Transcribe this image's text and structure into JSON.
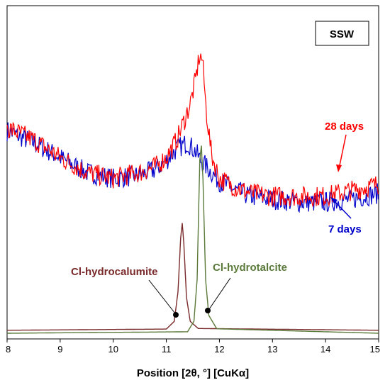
{
  "chart_data": {
    "type": "line",
    "title": "",
    "badge": "SSW",
    "xlabel": "Position [2θ, °] [CuKα]",
    "ylabel": "",
    "xlim": [
      8,
      15
    ],
    "ylim": [
      0,
      100
    ],
    "xticks": [
      8,
      9,
      10,
      11,
      12,
      13,
      14,
      15
    ],
    "xtick_labels": [
      "8",
      "9",
      "10",
      "11",
      "12",
      "13",
      "14",
      "15"
    ],
    "series": [
      {
        "name": "28 days",
        "color": "#ff0000",
        "x": [
          8.0,
          8.5,
          9.0,
          9.5,
          10.0,
          10.5,
          10.8,
          11.0,
          11.2,
          11.35,
          11.45,
          11.55,
          11.62,
          11.68,
          11.75,
          11.85,
          12.0,
          12.3,
          12.6,
          13.0,
          13.5,
          14.0,
          14.5,
          15.0
        ],
        "y": [
          69,
          65,
          59,
          54,
          52,
          54,
          56,
          59,
          65,
          72,
          77,
          85,
          93,
          92,
          75,
          60,
          52,
          49,
          47,
          46,
          46,
          46,
          48,
          50
        ]
      },
      {
        "name": "7 days",
        "color": "#0000cc",
        "x": [
          8.0,
          8.5,
          9.0,
          9.5,
          10.0,
          10.5,
          10.8,
          11.0,
          11.2,
          11.4,
          11.55,
          11.65,
          11.75,
          11.85,
          12.0,
          12.3,
          12.6,
          13.0,
          13.5,
          14.0,
          14.5,
          15.0
        ],
        "y": [
          68,
          64,
          59,
          54,
          52,
          53,
          55,
          58,
          62,
          64,
          61,
          58,
          56,
          54,
          51,
          48,
          46,
          45,
          44,
          44,
          45,
          47
        ]
      },
      {
        "name": "Cl-hydrocalumite",
        "color": "#7a2a2a",
        "x": [
          8.0,
          11.0,
          11.15,
          11.22,
          11.27,
          11.3,
          11.33,
          11.38,
          11.45,
          11.6,
          15.0
        ],
        "y": [
          1,
          1.4,
          4,
          14,
          32,
          37,
          30,
          12,
          4,
          1.6,
          1
        ]
      },
      {
        "name": "Cl-hydrotalcite",
        "color": "#5a7a3a",
        "x": [
          8.0,
          11.4,
          11.52,
          11.58,
          11.63,
          11.66,
          11.69,
          11.74,
          11.8,
          11.95,
          15.0
        ],
        "y": [
          0,
          0.5,
          4,
          18,
          58,
          63,
          52,
          18,
          6,
          1.5,
          0
        ]
      }
    ],
    "annotations": [
      {
        "text": "28 days",
        "color": "#ff0000"
      },
      {
        "text": "7 days",
        "color": "#0000cc"
      },
      {
        "text": "Cl-hydrocalumite",
        "color": "#7a2a2a"
      },
      {
        "text": "Cl-hydrotalcite",
        "color": "#5a7a3a"
      }
    ],
    "grid": false,
    "legend": "none"
  }
}
